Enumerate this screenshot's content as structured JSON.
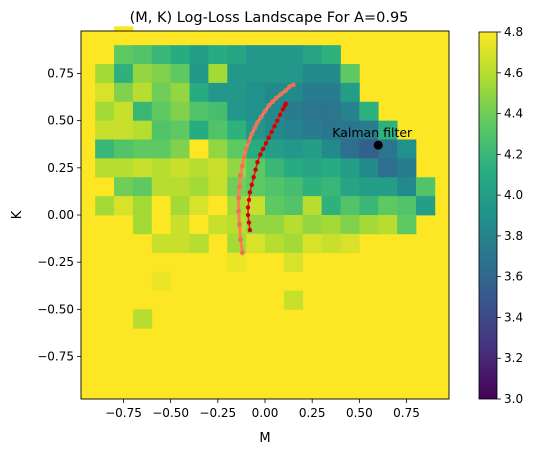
{
  "chart_data": {
    "type": "heatmap",
    "title": "(M, K) Log-Loss Landscape For A=0.95",
    "xlabel": "M",
    "ylabel": "K",
    "xlim": [
      -0.975,
      0.975
    ],
    "ylim": [
      -0.975,
      0.975
    ],
    "grid_step": 0.1,
    "x_ticks": [
      "−0.75",
      "−0.50",
      "−0.25",
      "0.00",
      "0.25",
      "0.50",
      "0.75"
    ],
    "x_tick_values": [
      -0.75,
      -0.5,
      -0.25,
      0,
      0.25,
      0.5,
      0.75
    ],
    "y_ticks": [
      "0.75",
      "0.50",
      "0.25",
      "0.00",
      "−0.25",
      "−0.50",
      "−0.75"
    ],
    "y_tick_values": [
      0.75,
      0.5,
      0.25,
      0,
      -0.25,
      -0.5,
      -0.75
    ],
    "colorbar": {
      "min": 3.0,
      "max": 4.8,
      "colormap": "viridis",
      "ticks": [
        "4.8",
        "4.6",
        "4.4",
        "4.2",
        "4.0",
        "3.8",
        "3.6",
        "3.4",
        "3.2",
        "3.0"
      ],
      "tick_values": [
        4.8,
        4.6,
        4.4,
        4.2,
        4.0,
        3.8,
        3.6,
        3.4,
        3.2,
        3.0
      ]
    },
    "background_value": 4.8,
    "cells": [
      {
        "m": -0.75,
        "k": 0.95,
        "v": 4.8
      },
      {
        "m": -0.75,
        "k": 0.85,
        "v": 4.35
      },
      {
        "m": -0.65,
        "k": 0.85,
        "v": 4.3
      },
      {
        "m": -0.55,
        "k": 0.85,
        "v": 4.2
      },
      {
        "m": -0.45,
        "k": 0.85,
        "v": 4.1
      },
      {
        "m": -0.35,
        "k": 0.85,
        "v": 4.0
      },
      {
        "m": -0.25,
        "k": 0.85,
        "v": 4.1
      },
      {
        "m": -0.15,
        "k": 0.85,
        "v": 4.05
      },
      {
        "m": -0.05,
        "k": 0.85,
        "v": 3.95
      },
      {
        "m": 0.05,
        "k": 0.85,
        "v": 3.95
      },
      {
        "m": 0.15,
        "k": 0.85,
        "v": 3.95
      },
      {
        "m": 0.25,
        "k": 0.85,
        "v": 4.05
      },
      {
        "m": 0.35,
        "k": 0.85,
        "v": 4.15
      },
      {
        "m": -0.85,
        "k": 0.75,
        "v": 4.55
      },
      {
        "m": -0.75,
        "k": 0.75,
        "v": 4.15
      },
      {
        "m": -0.65,
        "k": 0.75,
        "v": 4.5
      },
      {
        "m": -0.55,
        "k": 0.75,
        "v": 4.45
      },
      {
        "m": -0.45,
        "k": 0.75,
        "v": 4.35
      },
      {
        "m": -0.35,
        "k": 0.75,
        "v": 3.95
      },
      {
        "m": -0.25,
        "k": 0.75,
        "v": 4.55
      },
      {
        "m": -0.15,
        "k": 0.75,
        "v": 3.95
      },
      {
        "m": -0.05,
        "k": 0.75,
        "v": 3.95
      },
      {
        "m": 0.05,
        "k": 0.75,
        "v": 3.95
      },
      {
        "m": 0.15,
        "k": 0.75,
        "v": 3.95
      },
      {
        "m": 0.25,
        "k": 0.75,
        "v": 3.85
      },
      {
        "m": 0.35,
        "k": 0.75,
        "v": 3.85
      },
      {
        "m": 0.45,
        "k": 0.75,
        "v": 4.35
      },
      {
        "m": -0.85,
        "k": 0.65,
        "v": 4.7
      },
      {
        "m": -0.75,
        "k": 0.65,
        "v": 4.45
      },
      {
        "m": -0.65,
        "k": 0.65,
        "v": 4.6
      },
      {
        "m": -0.55,
        "k": 0.65,
        "v": 4.4
      },
      {
        "m": -0.45,
        "k": 0.65,
        "v": 4.5
      },
      {
        "m": -0.35,
        "k": 0.65,
        "v": 4.1
      },
      {
        "m": -0.25,
        "k": 0.65,
        "v": 3.95
      },
      {
        "m": -0.15,
        "k": 0.65,
        "v": 3.95
      },
      {
        "m": -0.05,
        "k": 0.65,
        "v": 3.9
      },
      {
        "m": 0.05,
        "k": 0.65,
        "v": 3.85
      },
      {
        "m": 0.15,
        "k": 0.65,
        "v": 3.85
      },
      {
        "m": 0.25,
        "k": 0.65,
        "v": 3.75
      },
      {
        "m": 0.35,
        "k": 0.65,
        "v": 3.75
      },
      {
        "m": 0.45,
        "k": 0.65,
        "v": 4.0
      },
      {
        "m": -0.85,
        "k": 0.55,
        "v": 4.55
      },
      {
        "m": -0.75,
        "k": 0.55,
        "v": 4.65
      },
      {
        "m": -0.65,
        "k": 0.55,
        "v": 4.2
      },
      {
        "m": -0.55,
        "k": 0.55,
        "v": 4.35
      },
      {
        "m": -0.45,
        "k": 0.55,
        "v": 4.45
      },
      {
        "m": -0.35,
        "k": 0.55,
        "v": 4.3
      },
      {
        "m": -0.25,
        "k": 0.55,
        "v": 4.25
      },
      {
        "m": -0.15,
        "k": 0.55,
        "v": 3.95
      },
      {
        "m": -0.05,
        "k": 0.55,
        "v": 3.9
      },
      {
        "m": 0.05,
        "k": 0.55,
        "v": 3.85
      },
      {
        "m": 0.15,
        "k": 0.55,
        "v": 3.75
      },
      {
        "m": 0.25,
        "k": 0.55,
        "v": 3.7
      },
      {
        "m": 0.35,
        "k": 0.55,
        "v": 3.7
      },
      {
        "m": 0.45,
        "k": 0.55,
        "v": 3.8
      },
      {
        "m": 0.55,
        "k": 0.55,
        "v": 4.15
      },
      {
        "m": -0.85,
        "k": 0.45,
        "v": 4.65
      },
      {
        "m": -0.75,
        "k": 0.45,
        "v": 4.65
      },
      {
        "m": -0.65,
        "k": 0.45,
        "v": 4.6
      },
      {
        "m": -0.55,
        "k": 0.45,
        "v": 4.3
      },
      {
        "m": -0.45,
        "k": 0.45,
        "v": 4.35
      },
      {
        "m": -0.35,
        "k": 0.45,
        "v": 4.1
      },
      {
        "m": -0.25,
        "k": 0.45,
        "v": 4.3
      },
      {
        "m": -0.15,
        "k": 0.45,
        "v": 4.15
      },
      {
        "m": -0.05,
        "k": 0.45,
        "v": 3.95
      },
      {
        "m": 0.05,
        "k": 0.45,
        "v": 3.85
      },
      {
        "m": 0.15,
        "k": 0.45,
        "v": 3.8
      },
      {
        "m": 0.25,
        "k": 0.45,
        "v": 3.75
      },
      {
        "m": 0.35,
        "k": 0.45,
        "v": 3.7
      },
      {
        "m": 0.45,
        "k": 0.45,
        "v": 3.7
      },
      {
        "m": 0.55,
        "k": 0.45,
        "v": 3.75
      },
      {
        "m": 0.65,
        "k": 0.45,
        "v": 4.15
      },
      {
        "m": -0.85,
        "k": 0.35,
        "v": 4.2
      },
      {
        "m": -0.75,
        "k": 0.35,
        "v": 4.3
      },
      {
        "m": -0.65,
        "k": 0.35,
        "v": 4.35
      },
      {
        "m": -0.55,
        "k": 0.35,
        "v": 4.35
      },
      {
        "m": -0.45,
        "k": 0.35,
        "v": 4.45
      },
      {
        "m": -0.35,
        "k": 0.35,
        "v": 4.8
      },
      {
        "m": -0.25,
        "k": 0.35,
        "v": 4.5
      },
      {
        "m": -0.15,
        "k": 0.35,
        "v": 4.35
      },
      {
        "m": -0.05,
        "k": 0.35,
        "v": 4.1
      },
      {
        "m": 0.05,
        "k": 0.35,
        "v": 4.0
      },
      {
        "m": 0.15,
        "k": 0.35,
        "v": 3.95
      },
      {
        "m": 0.25,
        "k": 0.35,
        "v": 4.0
      },
      {
        "m": 0.35,
        "k": 0.35,
        "v": 3.85
      },
      {
        "m": 0.45,
        "k": 0.35,
        "v": 3.65
      },
      {
        "m": 0.55,
        "k": 0.35,
        "v": 3.55
      },
      {
        "m": 0.65,
        "k": 0.35,
        "v": 3.7
      },
      {
        "m": 0.75,
        "k": 0.35,
        "v": 3.9
      },
      {
        "m": -0.85,
        "k": 0.25,
        "v": 4.6
      },
      {
        "m": -0.75,
        "k": 0.25,
        "v": 4.6
      },
      {
        "m": -0.65,
        "k": 0.25,
        "v": 4.65
      },
      {
        "m": -0.55,
        "k": 0.25,
        "v": 4.6
      },
      {
        "m": -0.45,
        "k": 0.25,
        "v": 4.65
      },
      {
        "m": -0.35,
        "k": 0.25,
        "v": 4.6
      },
      {
        "m": -0.25,
        "k": 0.25,
        "v": 4.65
      },
      {
        "m": -0.15,
        "k": 0.25,
        "v": 4.5
      },
      {
        "m": -0.05,
        "k": 0.25,
        "v": 4.35
      },
      {
        "m": 0.05,
        "k": 0.25,
        "v": 4.2
      },
      {
        "m": 0.15,
        "k": 0.25,
        "v": 4.1
      },
      {
        "m": 0.25,
        "k": 0.25,
        "v": 4.05
      },
      {
        "m": 0.35,
        "k": 0.25,
        "v": 4.1
      },
      {
        "m": 0.45,
        "k": 0.25,
        "v": 4.0
      },
      {
        "m": 0.55,
        "k": 0.25,
        "v": 3.85
      },
      {
        "m": 0.65,
        "k": 0.25,
        "v": 3.65
      },
      {
        "m": 0.75,
        "k": 0.25,
        "v": 3.75
      },
      {
        "m": -0.75,
        "k": 0.15,
        "v": 4.4
      },
      {
        "m": -0.65,
        "k": 0.15,
        "v": 4.35
      },
      {
        "m": -0.55,
        "k": 0.15,
        "v": 4.6
      },
      {
        "m": -0.45,
        "k": 0.15,
        "v": 4.6
      },
      {
        "m": -0.35,
        "k": 0.15,
        "v": 4.55
      },
      {
        "m": -0.25,
        "k": 0.15,
        "v": 4.65
      },
      {
        "m": -0.15,
        "k": 0.15,
        "v": 4.4
      },
      {
        "m": -0.05,
        "k": 0.15,
        "v": 4.35
      },
      {
        "m": 0.05,
        "k": 0.15,
        "v": 4.3
      },
      {
        "m": 0.15,
        "k": 0.15,
        "v": 4.25
      },
      {
        "m": 0.25,
        "k": 0.15,
        "v": 4.15
      },
      {
        "m": 0.35,
        "k": 0.15,
        "v": 4.2
      },
      {
        "m": 0.45,
        "k": 0.15,
        "v": 4.05
      },
      {
        "m": 0.55,
        "k": 0.15,
        "v": 4.0
      },
      {
        "m": 0.65,
        "k": 0.15,
        "v": 4.0
      },
      {
        "m": 0.75,
        "k": 0.15,
        "v": 3.85
      },
      {
        "m": 0.85,
        "k": 0.15,
        "v": 4.3
      },
      {
        "m": -0.85,
        "k": 0.05,
        "v": 4.55
      },
      {
        "m": -0.75,
        "k": 0.05,
        "v": 4.7
      },
      {
        "m": -0.65,
        "k": 0.05,
        "v": 4.55
      },
      {
        "m": -0.55,
        "k": 0.05,
        "v": 4.8
      },
      {
        "m": -0.45,
        "k": 0.05,
        "v": 4.55
      },
      {
        "m": -0.35,
        "k": 0.05,
        "v": 4.7
      },
      {
        "m": -0.25,
        "k": 0.05,
        "v": 4.8
      },
      {
        "m": -0.15,
        "k": 0.05,
        "v": 4.55
      },
      {
        "m": -0.05,
        "k": 0.05,
        "v": 4.65
      },
      {
        "m": 0.05,
        "k": 0.05,
        "v": 4.35
      },
      {
        "m": 0.15,
        "k": 0.05,
        "v": 4.3
      },
      {
        "m": 0.25,
        "k": 0.05,
        "v": 4.6
      },
      {
        "m": 0.35,
        "k": 0.05,
        "v": 4.15
      },
      {
        "m": 0.45,
        "k": 0.05,
        "v": 4.3
      },
      {
        "m": 0.55,
        "k": 0.05,
        "v": 4.2
      },
      {
        "m": 0.65,
        "k": 0.05,
        "v": 4.35
      },
      {
        "m": 0.75,
        "k": 0.05,
        "v": 4.3
      },
      {
        "m": 0.85,
        "k": 0.05,
        "v": 4.0
      },
      {
        "m": -0.65,
        "k": -0.05,
        "v": 4.55
      },
      {
        "m": -0.55,
        "k": -0.05,
        "v": 4.8
      },
      {
        "m": -0.45,
        "k": -0.05,
        "v": 4.65
      },
      {
        "m": -0.35,
        "k": -0.05,
        "v": 4.8
      },
      {
        "m": -0.25,
        "k": -0.05,
        "v": 4.65
      },
      {
        "m": -0.15,
        "k": -0.05,
        "v": 4.6
      },
      {
        "m": -0.05,
        "k": -0.05,
        "v": 4.5
      },
      {
        "m": 0.05,
        "k": -0.05,
        "v": 4.5
      },
      {
        "m": 0.15,
        "k": -0.05,
        "v": 4.6
      },
      {
        "m": 0.25,
        "k": -0.05,
        "v": 4.5
      },
      {
        "m": 0.35,
        "k": -0.05,
        "v": 4.55
      },
      {
        "m": 0.45,
        "k": -0.05,
        "v": 4.45
      },
      {
        "m": 0.55,
        "k": -0.05,
        "v": 4.55
      },
      {
        "m": 0.65,
        "k": -0.05,
        "v": 4.6
      },
      {
        "m": 0.75,
        "k": -0.05,
        "v": 4.35
      },
      {
        "m": -0.55,
        "k": -0.15,
        "v": 4.65
      },
      {
        "m": -0.45,
        "k": -0.15,
        "v": 4.65
      },
      {
        "m": -0.35,
        "k": -0.15,
        "v": 4.6
      },
      {
        "m": -0.15,
        "k": -0.15,
        "v": 4.55
      },
      {
        "m": -0.05,
        "k": -0.15,
        "v": 4.7
      },
      {
        "m": 0.05,
        "k": -0.15,
        "v": 4.6
      },
      {
        "m": 0.15,
        "k": -0.15,
        "v": 4.55
      },
      {
        "m": 0.25,
        "k": -0.15,
        "v": 4.7
      },
      {
        "m": 0.35,
        "k": -0.15,
        "v": 4.65
      },
      {
        "m": 0.45,
        "k": -0.15,
        "v": 4.7
      },
      {
        "m": -0.15,
        "k": -0.25,
        "v": 4.75
      },
      {
        "m": 0.15,
        "k": -0.25,
        "v": 4.7
      },
      {
        "m": -0.55,
        "k": -0.35,
        "v": 4.75
      },
      {
        "m": 0.15,
        "k": -0.45,
        "v": 4.65
      },
      {
        "m": -0.65,
        "k": -0.55,
        "v": 4.6
      }
    ],
    "series": [
      {
        "style": "salmon",
        "x": [
          -0.12,
          -0.13,
          -0.135,
          -0.14,
          -0.14,
          -0.135,
          -0.13,
          -0.12,
          -0.11,
          -0.1,
          -0.085,
          -0.07,
          -0.055,
          -0.04,
          -0.02,
          0.0,
          0.02,
          0.04,
          0.06,
          0.085,
          0.11,
          0.13,
          0.15
        ],
        "y": [
          -0.2,
          -0.13,
          -0.05,
          0.02,
          0.09,
          0.15,
          0.21,
          0.26,
          0.31,
          0.35,
          0.39,
          0.43,
          0.46,
          0.49,
          0.52,
          0.55,
          0.58,
          0.6,
          0.62,
          0.64,
          0.66,
          0.68,
          0.69
        ]
      },
      {
        "style": "red",
        "x": [
          -0.08,
          -0.085,
          -0.09,
          -0.09,
          -0.085,
          -0.08,
          -0.07,
          -0.06,
          -0.05,
          -0.04,
          -0.025,
          -0.01,
          0.005,
          0.02,
          0.035,
          0.05,
          0.065,
          0.08,
          0.095,
          0.105,
          0.11
        ],
        "y": [
          -0.08,
          -0.04,
          0.0,
          0.04,
          0.08,
          0.12,
          0.16,
          0.2,
          0.24,
          0.28,
          0.32,
          0.35,
          0.38,
          0.41,
          0.44,
          0.47,
          0.5,
          0.53,
          0.56,
          0.58,
          0.59
        ]
      }
    ],
    "annotation": {
      "text": "Kalman filter",
      "x": 0.6,
      "y": 0.37
    }
  }
}
